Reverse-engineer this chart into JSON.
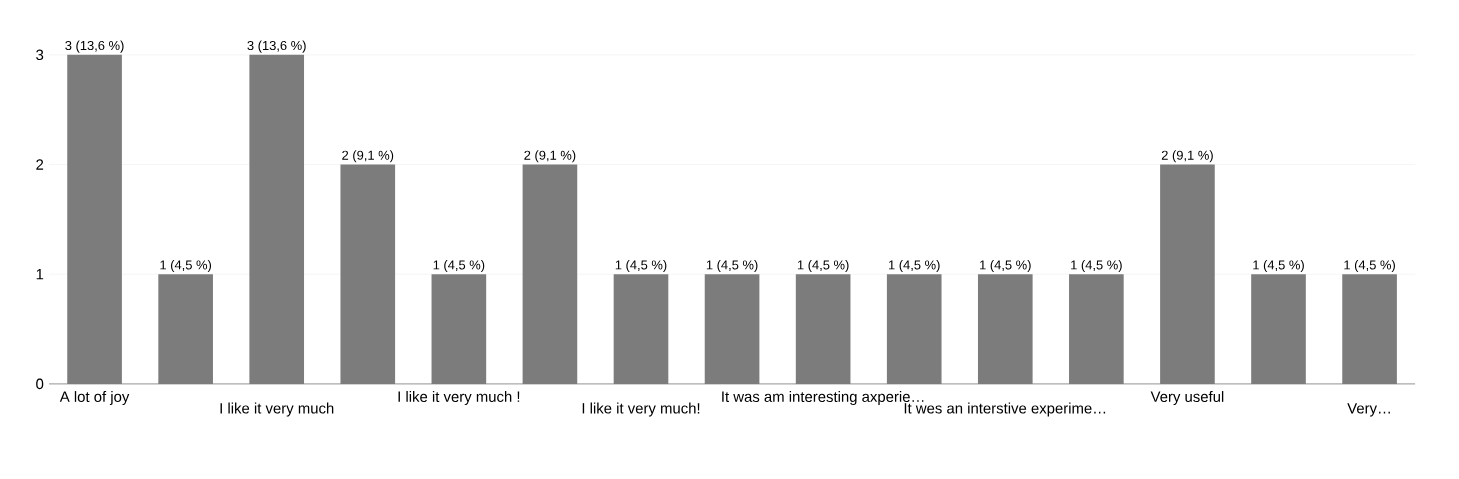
{
  "chart_data": {
    "type": "bar",
    "categories": [
      "A lot of joy",
      null,
      "I like it very much",
      null,
      "I like it very much !",
      null,
      "I like it very much!",
      null,
      "It was am interesting axperie…",
      null,
      "It wes an interstive experime…",
      null,
      "Very useful",
      null,
      "Very…"
    ],
    "values": [
      3,
      1,
      3,
      2,
      1,
      2,
      1,
      1,
      1,
      1,
      1,
      1,
      2,
      1,
      1
    ],
    "value_labels": [
      "3 (13,6 %)",
      "1 (4,5 %)",
      "3 (13,6 %)",
      "2 (9,1 %)",
      "1 (4,5 %)",
      "2 (9,1 %)",
      "1 (4,5 %)",
      "1 (4,5 %)",
      "1 (4,5 %)",
      "1 (4,5 %)",
      "1 (4,5 %)",
      "1 (4,5 %)",
      "2 (9,1 %)",
      "1 (4,5 %)",
      "1 (4,5 %)"
    ],
    "color": "#7c7c7c",
    "ylim": [
      0,
      3
    ],
    "yticks": [
      0,
      1,
      2,
      3
    ],
    "grid": "y"
  }
}
